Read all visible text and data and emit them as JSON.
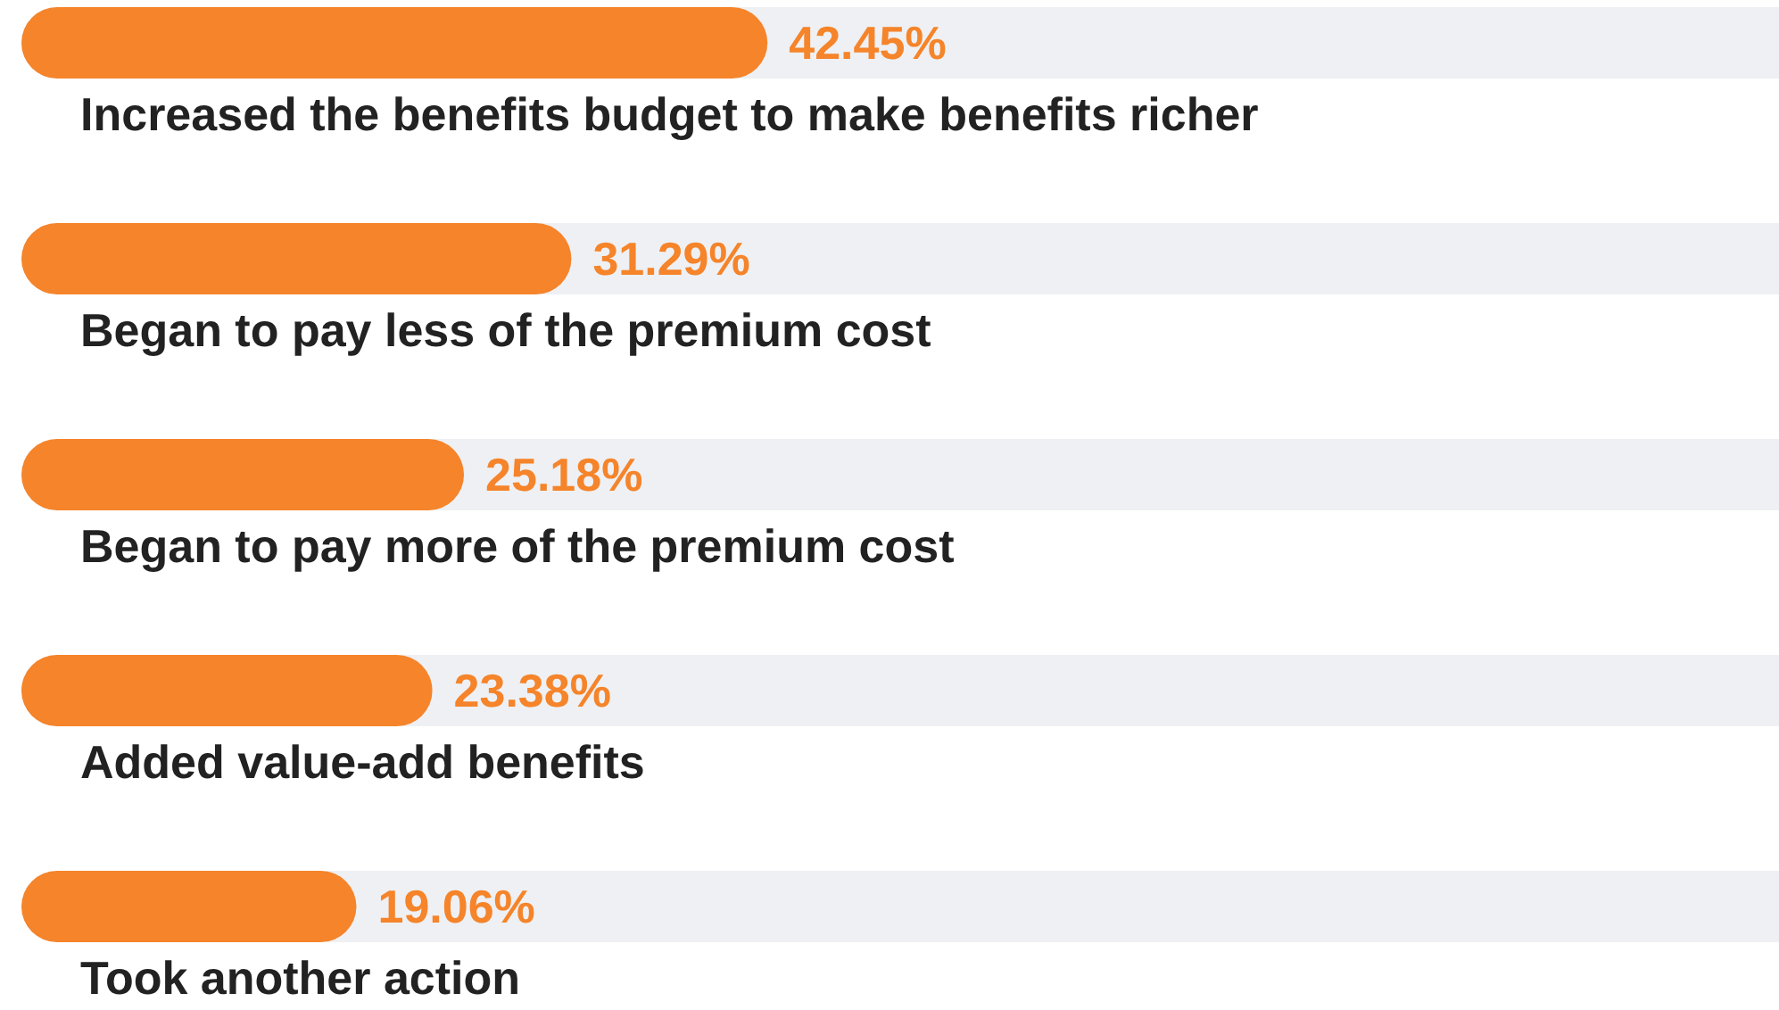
{
  "chart_data": {
    "type": "bar",
    "orientation": "horizontal",
    "categories": [
      "Increased the benefits budget to make benefits richer",
      "Began to pay less of the premium cost",
      "Began to pay more of the premium cost",
      "Added value-add benefits",
      "Took another action"
    ],
    "values": [
      42.45,
      31.29,
      25.18,
      23.38,
      19.06
    ],
    "value_labels": [
      "42.45%",
      "31.29%",
      "25.18%",
      "23.38%",
      "19.06%"
    ],
    "color": "#f5842a",
    "xlim": [
      0,
      100
    ],
    "tick_labels": "y"
  }
}
